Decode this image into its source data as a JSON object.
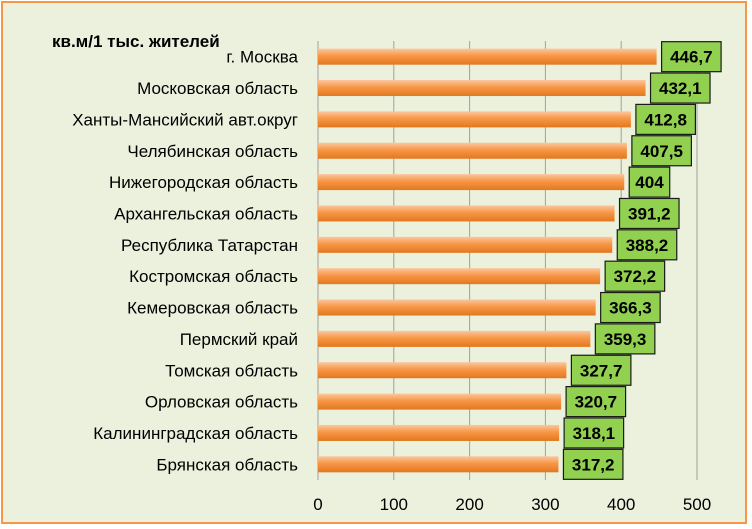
{
  "unit_label": "кв.м/1 тыс. жителей",
  "colors": {
    "background": "#ebf1dd",
    "border": "#f79646",
    "bar": "#f79646",
    "label_box": "#92d050",
    "grid": "#a0a0a0"
  },
  "chart_data": {
    "type": "bar",
    "orientation": "horizontal",
    "title": "",
    "ylabel": "кв.м/1 тыс. жителей",
    "xlabel": "",
    "xlim": [
      0,
      500
    ],
    "xticks": [
      0,
      100,
      200,
      300,
      400,
      500
    ],
    "grid": "vertical",
    "categories": [
      "г. Москва",
      "Московская область",
      "Ханты-Мансийский авт.округ",
      "Челябинская область",
      "Нижегородская область",
      "Архангельская область",
      "Республика Татарстан",
      "Костромская область",
      "Кемеровская область",
      "Пермский край",
      "Томская область",
      "Орловская область",
      "Калининградская область",
      "Брянская область"
    ],
    "values": [
      446.7,
      432.1,
      412.8,
      407.5,
      404,
      391.2,
      388.2,
      372.2,
      366.3,
      359.3,
      327.7,
      320.7,
      318.1,
      317.2
    ],
    "data_labels": [
      "446,7",
      "432,1",
      "412,8",
      "407,5",
      "404",
      "391,2",
      "388,2",
      "372,2",
      "366,3",
      "359,3",
      "327,7",
      "320,7",
      "318,1",
      "317,2"
    ]
  }
}
